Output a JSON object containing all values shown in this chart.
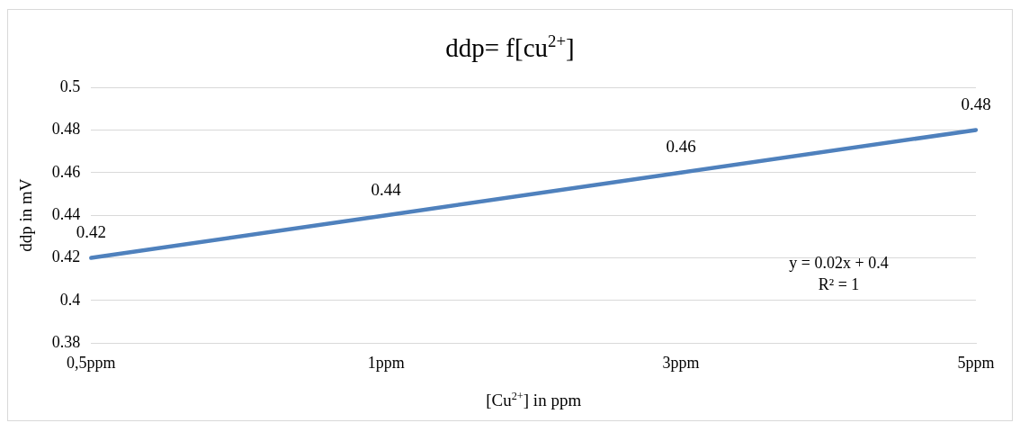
{
  "chart_data": {
    "type": "line",
    "title": "ddp= f[cu$^{2+}$]",
    "xlabel": "[Cu$^{2+}$] in ppm",
    "ylabel": "ddp in mV",
    "categories": [
      "0,5ppm",
      "1ppm",
      "3ppm",
      "5ppm"
    ],
    "series": [
      {
        "color": "#4f81bd",
        "values": [
          0.42,
          0.44,
          0.46,
          0.48
        ]
      }
    ],
    "ylim": [
      0.38,
      0.5
    ],
    "yticks": [
      0.38,
      0.4,
      0.42,
      0.44,
      0.46,
      0.48,
      0.5
    ],
    "grid": "y",
    "legend": false,
    "marker": "none",
    "line_style": "solid",
    "data_labels": true,
    "annotations": [
      "y = 0.02x + 0.4",
      "R² = 1"
    ]
  }
}
